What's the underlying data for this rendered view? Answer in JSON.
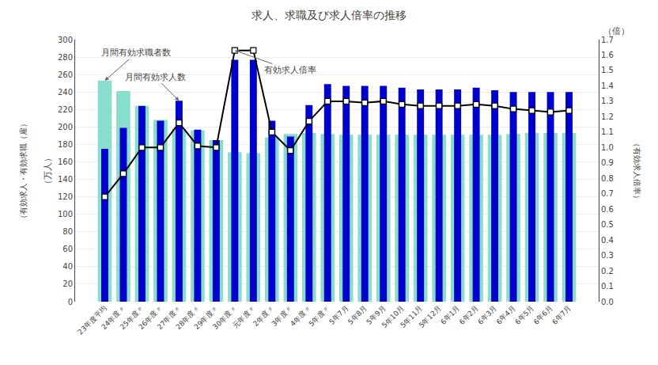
{
  "chart_data": {
    "type": "bar",
    "title": "求人、求職及び求人倍率の推移",
    "ylabel": "（万人）",
    "ylabel_secondary": "（有効求人・有効求職（雇）",
    "y2label": "（倍）",
    "y2label_secondary": "（有効求人倍率）",
    "categories": [
      "23年度平均",
      "24年度〃",
      "25年度〃",
      "26年度〃",
      "27年度〃",
      "28年度〃",
      "29年度〃",
      "30年度〃",
      "元年度〃",
      "2年度〃",
      "3年度〃",
      "4年度〃",
      "5年度〃",
      "5年7月",
      "5年8月",
      "5年9月",
      "5年10月",
      "5年11月",
      "5年12月",
      "6年1月",
      "6年2月",
      "6年3月",
      "6年4月",
      "6年5月",
      "6年6月",
      "6年7月"
    ],
    "series": [
      {
        "type": "bar",
        "color": "#88ddcc",
        "values": [
          253,
          241,
          224,
          208,
          198,
          196,
          185,
          171,
          170,
          188,
          192,
          193,
          192,
          191,
          191,
          191,
          191,
          191,
          191,
          191,
          191,
          191,
          192,
          193,
          193,
          193
        ],
        "annotation": "月間有効求職者数",
        "annotation_category": "23年度平均"
      },
      {
        "type": "bar",
        "color": "#0000cc",
        "values": [
          175,
          199,
          224,
          207,
          230,
          197,
          185,
          277,
          277,
          207,
          189,
          225,
          249,
          247,
          247,
          247,
          245,
          243,
          243,
          243,
          245,
          242,
          240,
          240,
          240,
          240
        ],
        "annotation": "月間有効求人数",
        "annotation_category": "27年度〃"
      },
      {
        "type": "line",
        "axis": "y2",
        "color": "#000000",
        "marker": "square",
        "values": [
          0.68,
          0.83,
          1.0,
          1.0,
          1.16,
          1.01,
          1.0,
          1.63,
          1.63,
          1.1,
          0.98,
          1.17,
          1.3,
          1.3,
          1.29,
          1.3,
          1.28,
          1.27,
          1.27,
          1.27,
          1.28,
          1.27,
          1.25,
          1.24,
          1.23,
          1.24
        ],
        "annotation": "有効求人倍率",
        "annotation_category": "30年度〃"
      }
    ],
    "ylim": [
      0,
      300
    ],
    "yticks": [
      0,
      20,
      40,
      60,
      80,
      100,
      120,
      140,
      160,
      180,
      200,
      220,
      240,
      260,
      280,
      300
    ],
    "y2lim": [
      0,
      1.7
    ],
    "y2ticks": [
      {
        "value": 0,
        "label": "0.0"
      },
      0.1,
      0.2,
      0.3,
      0.4,
      0.5,
      0.6,
      0.7,
      0.8,
      0.9,
      {
        "value": 1,
        "label": "1.0"
      },
      1.1,
      1.2,
      1.3,
      1.4,
      1.5,
      1.6,
      1.7
    ],
    "grid": true,
    "stacked": false
  }
}
